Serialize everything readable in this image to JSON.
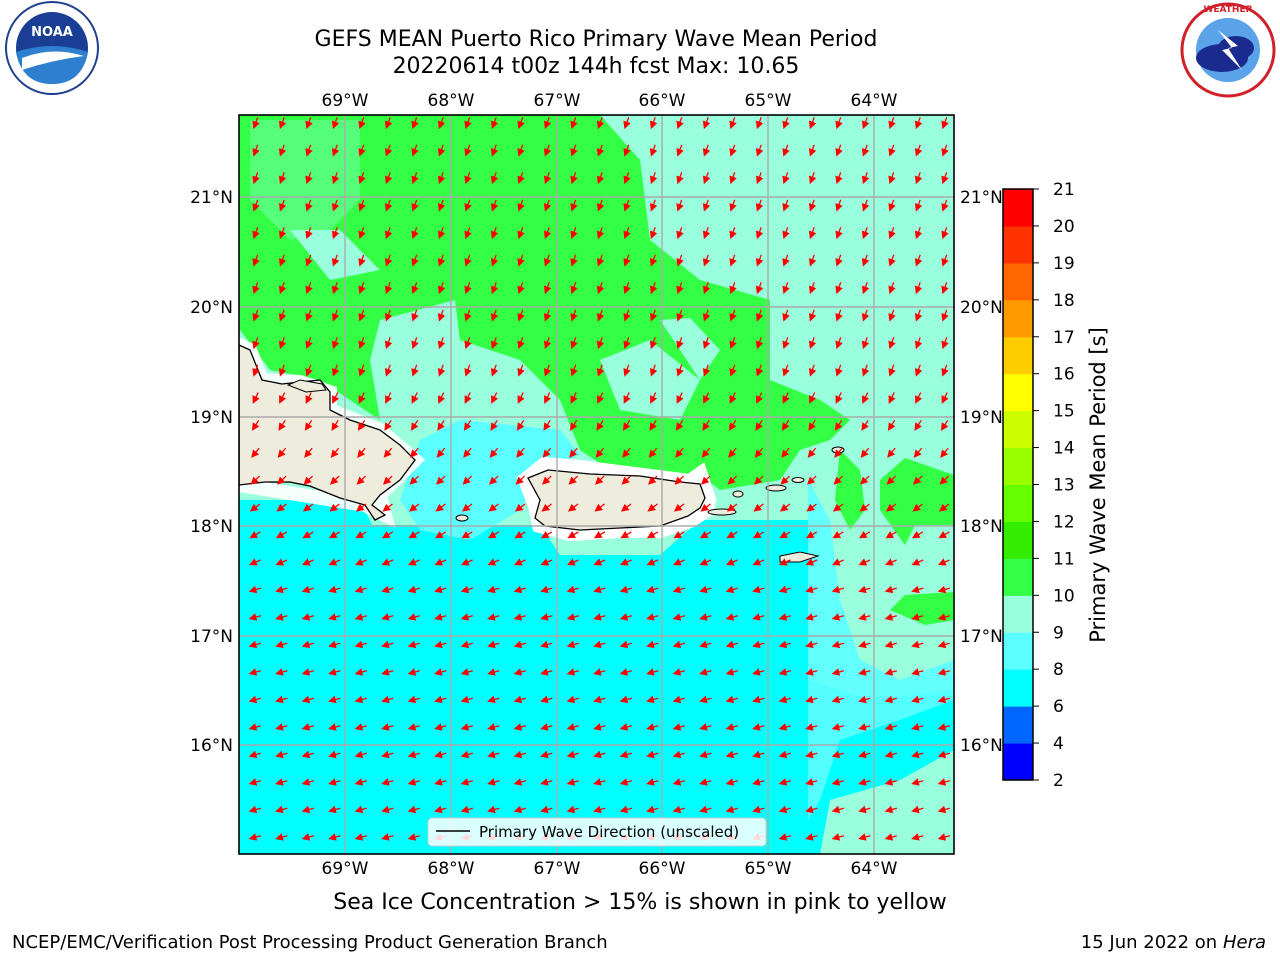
{
  "header": {
    "title_line1": "GEFS MEAN Puerto Rico Primary Wave Mean Period",
    "title_line2": "20220614 t00z 144h fcst   Max: 10.65"
  },
  "logos": {
    "left": {
      "name": "NOAA",
      "ring_text": "NATIONAL OCEANIC AND ATMOSPHERIC ADMINISTRATION • U.S. DEPARTMENT OF COMMERCE",
      "icon": "noaa-logo"
    },
    "right": {
      "name": "NATIONAL WEATHER SERVICE",
      "icon": "nws-logo"
    }
  },
  "map": {
    "lon_labels": [
      "69°W",
      "68°W",
      "67°W",
      "66°W",
      "65°W",
      "64°W"
    ],
    "lat_labels": [
      "21°N",
      "20°N",
      "19°N",
      "18°N",
      "17°N",
      "16°N"
    ],
    "legend_label": "Primary Wave Direction (unscaled)",
    "land_color": "#eeecdc",
    "arrow_color": "#ff0000"
  },
  "colorbar": {
    "label": "Primary Wave Mean Period [s]",
    "ticks": [
      "2",
      "4",
      "6",
      "8",
      "9",
      "10",
      "11",
      "12",
      "13",
      "14",
      "15",
      "16",
      "17",
      "18",
      "19",
      "20",
      "21"
    ],
    "colors": [
      "#0000ff",
      "#0066ff",
      "#00ffff",
      "#5cffff",
      "#99ffdd",
      "#33ff44",
      "#33ee00",
      "#66ff00",
      "#99ff00",
      "#ccff00",
      "#ffff00",
      "#ffcc00",
      "#ff9900",
      "#ff6600",
      "#ff3300",
      "#ff0000"
    ]
  },
  "notes": {
    "ice": "Sea Ice Concentration > 15% is shown in pink to yellow"
  },
  "footer": {
    "left": "NCEP/EMC/Verification Post Processing Product Generation Branch",
    "right_prefix": "15 Jun 2022 on",
    "right_host": "Hera"
  }
}
